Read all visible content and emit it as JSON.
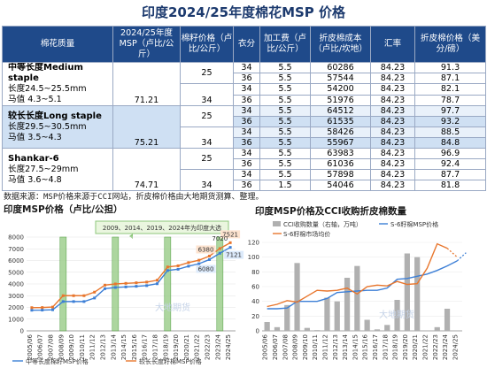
{
  "title": "印度2024/25年度棉花MSP 价格",
  "headers": [
    "棉花质量",
    "2024/25年度MSP（卢比/公斤）",
    "棉籽价格（卢比/公斤）",
    "衣分",
    "加工费（卢比/公斤）",
    "折皮棉成本（卢比/坎地）",
    "汇率",
    "折皮棉价格（美分/磅）"
  ],
  "groups": [
    {
      "name_cn": "中等长度Medium staple",
      "length": "长度24.5~25.5mm",
      "mic": "马值 4.3~5.1",
      "msp": "71.21",
      "seed": [
        "25",
        "34"
      ],
      "rows": [
        [
          "34",
          "5.5",
          "60286",
          "84.23",
          "91.3"
        ],
        [
          "36",
          "5.5",
          "57544",
          "84.23",
          "87.1"
        ],
        [
          "34",
          "5.5",
          "54200",
          "84.23",
          "82.1"
        ],
        [
          "36",
          "5.5",
          "51976",
          "84.23",
          "78.7"
        ]
      ]
    },
    {
      "name_cn": "较长长度Long staple",
      "length": "长度29.5~30.5mm",
      "mic": "马值 3.5~4.3",
      "msp": "75.21",
      "seed": [
        "25",
        "34"
      ],
      "rows": [
        [
          "34",
          "5.5",
          "64512",
          "84.23",
          "97.7"
        ],
        [
          "36",
          "5.5",
          "61535",
          "84.23",
          "93.2"
        ],
        [
          "34",
          "5.5",
          "58426",
          "84.23",
          "88.5"
        ],
        [
          "36",
          "5.5",
          "55967",
          "84.23",
          "84.8"
        ]
      ]
    },
    {
      "name_cn": "Shankar-6",
      "length": "长度27.5~29mm",
      "mic": "马值 3.6~4.8",
      "msp": "74.71",
      "seed": [
        "25",
        "34"
      ],
      "rows": [
        [
          "34",
          "5.5",
          "63983",
          "84.23",
          "96.9"
        ],
        [
          "36",
          "5.5",
          "61036",
          "84.23",
          "92.4"
        ],
        [
          "34",
          "5.5",
          "57898",
          "84.23",
          "87.7"
        ],
        [
          "36",
          "1.5",
          "54046",
          "84.23",
          "81.8"
        ]
      ]
    }
  ],
  "note": "数据来源：MSP价格来源于CCI网站，折皮棉价格由大地期货测算、整理。",
  "watermark": "大地期货",
  "colors": {
    "header_bg": "#1f4a8a",
    "row_highlight": "#cfe0f3",
    "series_blue": "#3c7fd6",
    "series_orange": "#e8762d",
    "bar_grey": "#b0b0b0",
    "hl_green": "#9fd08f"
  },
  "chart_data": [
    {
      "type": "line",
      "title": "印度MSP价格（卢比/公担）",
      "callout": "2009、2014、2019、2024年为印度大选",
      "ylim": [
        0,
        8000
      ],
      "yticks": [
        "0",
        "1000",
        "2000",
        "3000",
        "4000",
        "5000",
        "6000",
        "7000",
        "8000"
      ],
      "x": [
        "2005/06",
        "2006/07",
        "2007/08",
        "2008/09",
        "2009/10",
        "2010/11",
        "2011/12",
        "2012/13",
        "2013/14",
        "2014/15",
        "2015/16",
        "2016/17",
        "2017/18",
        "2018/19",
        "2019/20",
        "2020/21",
        "2021/22",
        "2022/23",
        "2023/24",
        "2024/25"
      ],
      "highlight": [
        "2008/09",
        "2013/14",
        "2018/19",
        "2023/24"
      ],
      "series": [
        {
          "name": "中等长度棉籽MSP价格",
          "values": [
            1760,
            1770,
            1800,
            2500,
            2500,
            2500,
            2800,
            3600,
            3700,
            3750,
            3800,
            3860,
            4020,
            5150,
            5255,
            5515,
            5726,
            6080,
            6620,
            7121
          ]
        },
        {
          "name": "较长长度籽棉MSP价格",
          "values": [
            1980,
            1990,
            2030,
            3000,
            3000,
            3000,
            3300,
            3900,
            4000,
            4050,
            4100,
            4160,
            4320,
            5450,
            5550,
            5825,
            6025,
            6380,
            7020,
            7521
          ]
        }
      ],
      "labels": [
        {
          "x": "2022/23",
          "text": "6380"
        },
        {
          "x": "2022/23",
          "text": "6080"
        },
        {
          "x": "2024/25",
          "text": "7521"
        },
        {
          "x": "2024/25",
          "text": "7121"
        },
        {
          "x": "2023/24",
          "text": "7020"
        }
      ]
    },
    {
      "type": "bar",
      "title": "印度MSP价格及CCI收购折皮棉数量",
      "x": [
        "2005/06",
        "2006/07",
        "2007/08",
        "2008/09",
        "2009/10",
        "2010/11",
        "2011/12",
        "2012/13",
        "2013/14",
        "2014/15",
        "2015/16",
        "2016/17",
        "2017/18",
        "2018/19",
        "2019/20",
        "2020/21",
        "2021/22",
        "2022/23",
        "2023/24",
        "2024/25"
      ],
      "ylim_left": [
        0,
        120
      ],
      "yticks_left": [
        "0",
        "20",
        "40",
        "60",
        "80",
        "100",
        "120"
      ],
      "series": [
        {
          "name": "CCI收购数量（右轴，万吨）",
          "values": [
            12,
            5,
            35,
            92,
            4,
            1,
            45,
            40,
            72,
            88,
            15,
            2,
            8,
            42,
            105,
            100,
            0,
            5,
            30,
            0
          ]
        },
        {
          "name": "S-6籽棉MSP价格",
          "values": [
            30,
            30,
            31,
            40,
            40,
            40,
            44,
            52,
            53,
            54,
            55,
            55,
            58,
            70,
            71,
            74,
            77,
            82,
            88,
            95
          ]
        },
        {
          "name": "S-6籽棉市场均价",
          "values": [
            33,
            36,
            41,
            39,
            47,
            55,
            54,
            55,
            58,
            50,
            60,
            62,
            61,
            67,
            63,
            64,
            85,
            118,
            112,
            null
          ]
        }
      ],
      "forecast": [
        100,
        106
      ]
    }
  ]
}
